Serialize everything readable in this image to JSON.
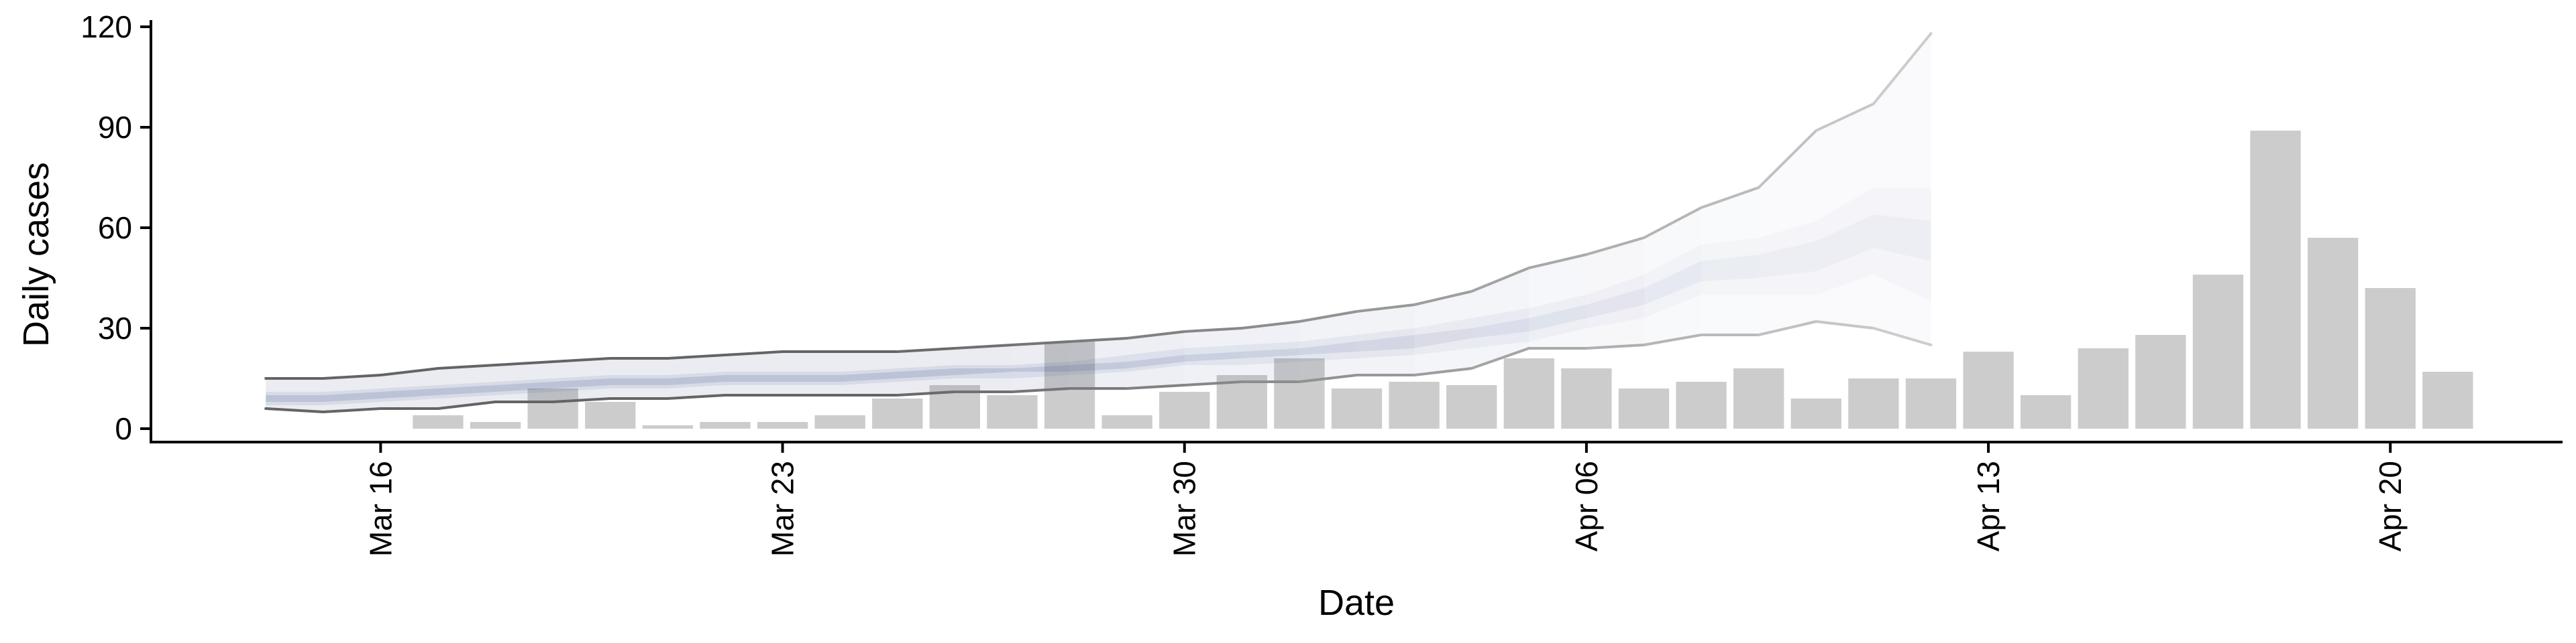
{
  "chart_data": {
    "type": "bar",
    "xlabel": "Date",
    "ylabel": "Daily cases",
    "ylim": [
      -4,
      122
    ],
    "xlim": [
      "2020-03-12",
      "2020-04-23"
    ],
    "yticks": [
      0,
      30,
      60,
      90,
      120
    ],
    "ytick_labels": [
      "0",
      "30",
      "60",
      "90",
      "120"
    ],
    "xticks": [
      "2020-03-16",
      "2020-03-23",
      "2020-03-30",
      "2020-04-06",
      "2020-04-13",
      "2020-04-20"
    ],
    "xtick_labels": [
      "Mar 16",
      "Mar 23",
      "Mar 30",
      "Apr 06",
      "Apr 13",
      "Apr 20"
    ],
    "grid": false,
    "bars": {
      "name": "",
      "color": "#cccccc",
      "dates": [
        "2020-03-17",
        "2020-03-18",
        "2020-03-19",
        "2020-03-20",
        "2020-03-21",
        "2020-03-22",
        "2020-03-23",
        "2020-03-24",
        "2020-03-25",
        "2020-03-26",
        "2020-03-27",
        "2020-03-28",
        "2020-03-29",
        "2020-03-30",
        "2020-03-31",
        "2020-04-01",
        "2020-04-02",
        "2020-04-03",
        "2020-04-04",
        "2020-04-05",
        "2020-04-06",
        "2020-04-07",
        "2020-04-08",
        "2020-04-09",
        "2020-04-10",
        "2020-04-11",
        "2020-04-12",
        "2020-04-13",
        "2020-04-14",
        "2020-04-15",
        "2020-04-16",
        "2020-04-17",
        "2020-04-18",
        "2020-04-19",
        "2020-04-20",
        "2020-04-21"
      ],
      "values": [
        4,
        2,
        12,
        8,
        1,
        2,
        2,
        4,
        9,
        13,
        10,
        26,
        4,
        11,
        16,
        21,
        12,
        14,
        13,
        21,
        18,
        12,
        14,
        18,
        9,
        15,
        15,
        23,
        10,
        24,
        28,
        46,
        89,
        57,
        42,
        17
      ]
    },
    "projection": {
      "band_color": "#3c508c",
      "dates": [
        "2020-03-14",
        "2020-03-15",
        "2020-03-16",
        "2020-03-17",
        "2020-03-18",
        "2020-03-19",
        "2020-03-20",
        "2020-03-21",
        "2020-03-22",
        "2020-03-23",
        "2020-03-24",
        "2020-03-25",
        "2020-03-26",
        "2020-03-27",
        "2020-03-28",
        "2020-03-29",
        "2020-03-30",
        "2020-03-31",
        "2020-04-01",
        "2020-04-02",
        "2020-04-03",
        "2020-04-04",
        "2020-04-05",
        "2020-04-06",
        "2020-04-07",
        "2020-04-08",
        "2020-04-09",
        "2020-04-10",
        "2020-04-11",
        "2020-04-12"
      ],
      "lower_90": [
        6,
        5,
        6,
        6,
        8,
        8,
        9,
        9,
        10,
        10,
        10,
        10,
        11,
        11,
        12,
        12,
        13,
        14,
        14,
        16,
        16,
        18,
        24,
        24,
        25,
        28,
        28,
        32,
        30,
        25
      ],
      "upper_90": [
        15,
        15,
        16,
        18,
        19,
        20,
        21,
        21,
        22,
        23,
        23,
        23,
        24,
        25,
        26,
        27,
        29,
        30,
        32,
        35,
        37,
        41,
        48,
        52,
        57,
        66,
        72,
        89,
        97,
        118
      ],
      "lower_50": [
        7,
        7,
        8,
        9,
        10,
        11,
        12,
        12,
        13,
        13,
        13,
        14,
        15,
        15,
        16,
        17,
        19,
        19,
        20,
        21,
        22,
        24,
        26,
        30,
        33,
        40,
        40,
        40,
        46,
        38
      ],
      "upper_50": [
        11,
        11,
        12,
        13,
        14,
        15,
        16,
        16,
        17,
        17,
        17,
        18,
        19,
        19,
        20,
        22,
        24,
        25,
        26,
        28,
        30,
        33,
        36,
        40,
        46,
        55,
        57,
        62,
        72,
        72
      ],
      "lower_25": [
        8,
        8,
        9,
        10,
        11,
        12,
        13,
        13,
        14,
        14,
        14,
        15,
        16,
        17,
        17,
        18,
        20,
        21,
        22,
        23,
        24,
        27,
        29,
        33,
        37,
        44,
        45,
        47,
        54,
        50
      ],
      "upper_25": [
        10,
        10,
        11,
        12,
        13,
        14,
        15,
        15,
        16,
        16,
        16,
        17,
        18,
        18,
        19,
        20,
        22,
        23,
        24,
        26,
        28,
        30,
        33,
        37,
        42,
        50,
        52,
        56,
        64,
        62
      ]
    }
  }
}
